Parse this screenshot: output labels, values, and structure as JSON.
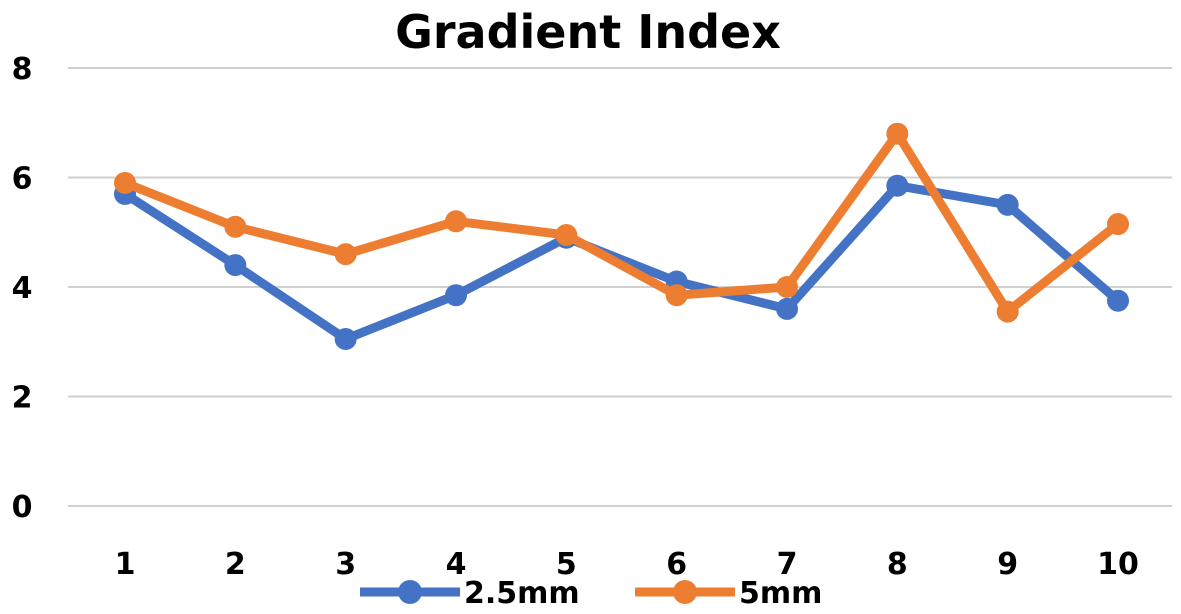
{
  "chart_data": {
    "type": "line",
    "title": "Gradient Index",
    "xlabel": "",
    "ylabel": "",
    "categories": [
      "1",
      "2",
      "3",
      "4",
      "5",
      "6",
      "7",
      "8",
      "9",
      "10"
    ],
    "ylim": [
      0,
      8
    ],
    "yticks": [
      0,
      2,
      4,
      6,
      8
    ],
    "grid": true,
    "legend_position": "bottom",
    "series": [
      {
        "name": "2.5mm",
        "color": "#4472C4",
        "values": [
          5.7,
          4.4,
          3.05,
          3.85,
          4.9,
          4.1,
          3.6,
          5.85,
          5.5,
          3.75
        ]
      },
      {
        "name": "5mm",
        "color": "#ED7D31",
        "values": [
          5.9,
          5.1,
          4.6,
          5.2,
          4.95,
          3.85,
          4.0,
          6.8,
          3.55,
          5.15
        ]
      }
    ]
  }
}
